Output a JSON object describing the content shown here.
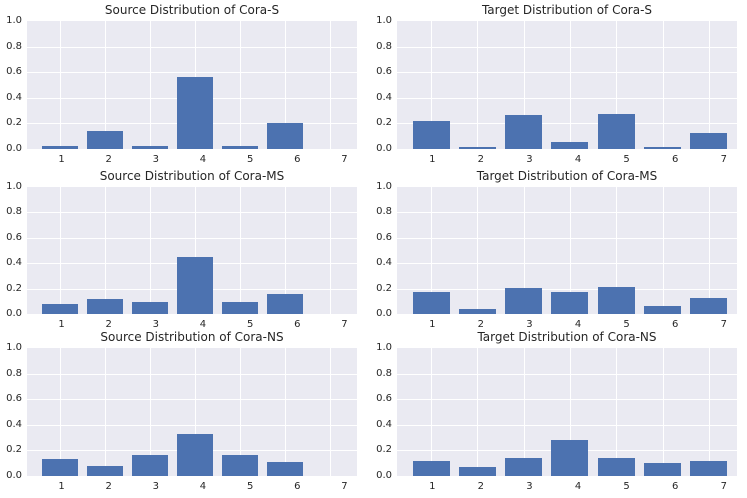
{
  "figure": {
    "background": "#ffffff",
    "axes_background": "#eaeaf2",
    "grid_color": "#ffffff",
    "bar_color": "#4c72b0",
    "text_color": "#262626"
  },
  "chart_data": [
    {
      "type": "bar",
      "title": "Source Distribution of Cora-S",
      "categories": [
        "1",
        "2",
        "3",
        "4",
        "5",
        "6",
        "7"
      ],
      "values": [
        0.02,
        0.14,
        0.027,
        0.56,
        0.027,
        0.2,
        0.0
      ],
      "xlabel": "",
      "ylabel": "",
      "ylim": [
        0,
        1
      ],
      "yticks": [
        "0.0",
        "0.2",
        "0.4",
        "0.6",
        "0.8",
        "1.0"
      ],
      "grid": true,
      "legend": false
    },
    {
      "type": "bar",
      "title": "Target Distribution of Cora-S",
      "categories": [
        "1",
        "2",
        "3",
        "4",
        "5",
        "6",
        "7"
      ],
      "values": [
        0.22,
        0.012,
        0.265,
        0.055,
        0.27,
        0.017,
        0.125
      ],
      "xlabel": "",
      "ylabel": "",
      "ylim": [
        0,
        1
      ],
      "yticks": [
        "0.0",
        "0.2",
        "0.4",
        "0.6",
        "0.8",
        "1.0"
      ],
      "grid": true,
      "legend": false
    },
    {
      "type": "bar",
      "title": "Source Distribution of Cora-MS",
      "categories": [
        "1",
        "2",
        "3",
        "4",
        "5",
        "6",
        "7"
      ],
      "values": [
        0.08,
        0.115,
        0.095,
        0.45,
        0.095,
        0.155,
        0.0
      ],
      "xlabel": "",
      "ylabel": "",
      "ylim": [
        0,
        1
      ],
      "yticks": [
        "0.0",
        "0.2",
        "0.4",
        "0.6",
        "0.8",
        "1.0"
      ],
      "grid": true,
      "legend": false
    },
    {
      "type": "bar",
      "title": "Target Distribution of Cora-MS",
      "categories": [
        "1",
        "2",
        "3",
        "4",
        "5",
        "6",
        "7"
      ],
      "values": [
        0.17,
        0.042,
        0.203,
        0.17,
        0.21,
        0.06,
        0.125
      ],
      "xlabel": "",
      "ylabel": "",
      "ylim": [
        0,
        1
      ],
      "yticks": [
        "0.0",
        "0.2",
        "0.4",
        "0.6",
        "0.8",
        "1.0"
      ],
      "grid": true,
      "legend": false
    },
    {
      "type": "bar",
      "title": "Source Distribution of Cora-NS",
      "categories": [
        "1",
        "2",
        "3",
        "4",
        "5",
        "6",
        "7"
      ],
      "values": [
        0.135,
        0.082,
        0.162,
        0.325,
        0.168,
        0.112,
        0.0
      ],
      "xlabel": "",
      "ylabel": "",
      "ylim": [
        0,
        1
      ],
      "yticks": [
        "0.0",
        "0.2",
        "0.4",
        "0.6",
        "0.8",
        "1.0"
      ],
      "grid": true,
      "legend": false
    },
    {
      "type": "bar",
      "title": "Target Distribution of Cora-NS",
      "categories": [
        "1",
        "2",
        "3",
        "4",
        "5",
        "6",
        "7"
      ],
      "values": [
        0.115,
        0.07,
        0.14,
        0.28,
        0.143,
        0.1,
        0.12
      ],
      "xlabel": "",
      "ylabel": "",
      "ylim": [
        0,
        1
      ],
      "yticks": [
        "0.0",
        "0.2",
        "0.4",
        "0.6",
        "0.8",
        "1.0"
      ],
      "grid": true,
      "legend": false
    }
  ]
}
